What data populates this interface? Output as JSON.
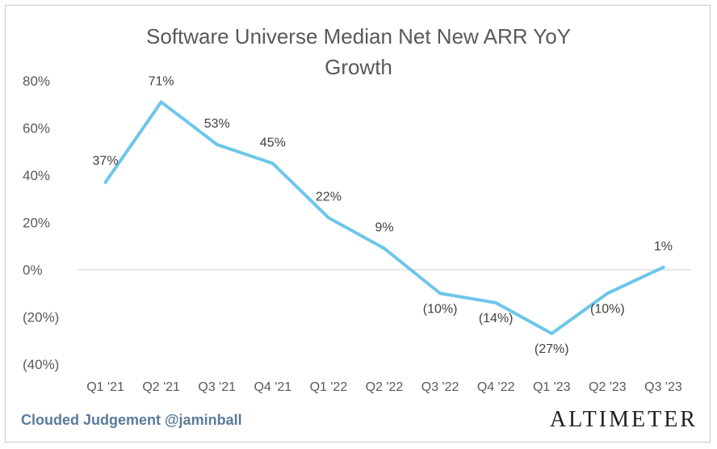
{
  "chart_data": {
    "type": "line",
    "title_lines": [
      "Software Universe Median Net New ARR YoY",
      "Growth"
    ],
    "categories": [
      "Q1 '21",
      "Q2 '21",
      "Q3 '21",
      "Q4 '21",
      "Q1 '22",
      "Q2 '22",
      "Q3 '22",
      "Q4 '22",
      "Q1 '23",
      "Q2 '23",
      "Q3 '23"
    ],
    "series": [
      {
        "values": [
          37,
          71,
          53,
          45,
          22,
          9,
          -10,
          -14,
          -27,
          -10,
          1
        ],
        "data_labels": [
          "37%",
          "71%",
          "53%",
          "45%",
          "22%",
          "9%",
          "(10%)",
          "(14%)",
          "(27%)",
          "(10%)",
          "1%"
        ],
        "color": "#6ec6ea"
      }
    ],
    "ylim": [
      -40,
      80
    ],
    "yticks": [
      80,
      60,
      40,
      20,
      0,
      -20,
      -40
    ],
    "ytick_labels": [
      "80%",
      "60%",
      "40%",
      "20%",
      "0%",
      "(20%)",
      "(40%)"
    ],
    "grid": false
  },
  "footer": {
    "source": "Clouded Judgement @jaminball",
    "brand": "ALTIMETER"
  },
  "colors": {
    "line": "#6ec6ea",
    "text": "#595959",
    "axis": "#d9d9d9",
    "footer_left": "#5b7b9a"
  }
}
